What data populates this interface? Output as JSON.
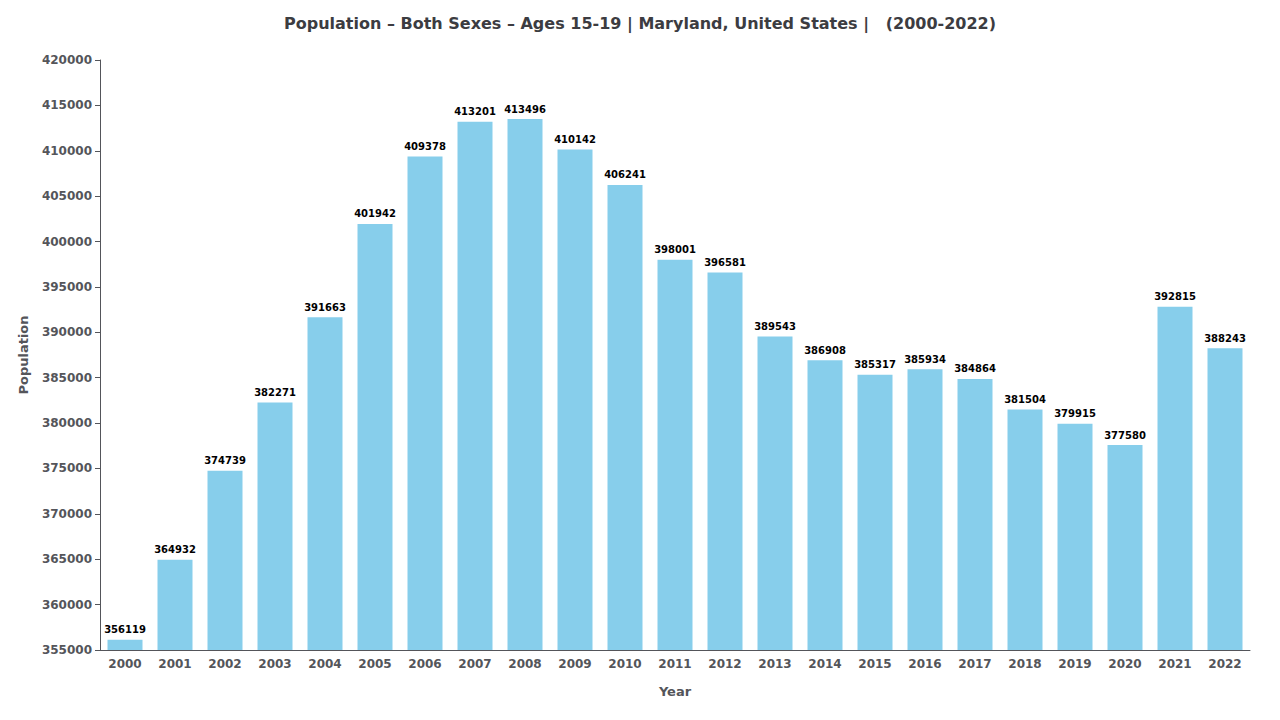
{
  "chart_data": {
    "type": "bar",
    "title": "Population – Both Sexes – Ages 15-19 | Maryland, United States |   (2000-2022)",
    "xlabel": "Year",
    "ylabel": "Population",
    "categories": [
      "2000",
      "2001",
      "2002",
      "2003",
      "2004",
      "2005",
      "2006",
      "2007",
      "2008",
      "2009",
      "2010",
      "2011",
      "2012",
      "2013",
      "2014",
      "2015",
      "2016",
      "2017",
      "2018",
      "2019",
      "2020",
      "2021",
      "2022"
    ],
    "values": [
      356119,
      364932,
      374739,
      382271,
      391663,
      401942,
      409378,
      413201,
      413496,
      410142,
      406241,
      398001,
      396581,
      389543,
      386908,
      385317,
      385934,
      384864,
      381504,
      379915,
      377580,
      392815,
      388243
    ],
    "color": "#87ceeb",
    "ylim": [
      355000,
      420000
    ],
    "yticks": [
      355000,
      360000,
      365000,
      370000,
      375000,
      380000,
      385000,
      390000,
      395000,
      400000,
      405000,
      410000,
      415000,
      420000
    ],
    "grid": false,
    "data_labels": true
  }
}
